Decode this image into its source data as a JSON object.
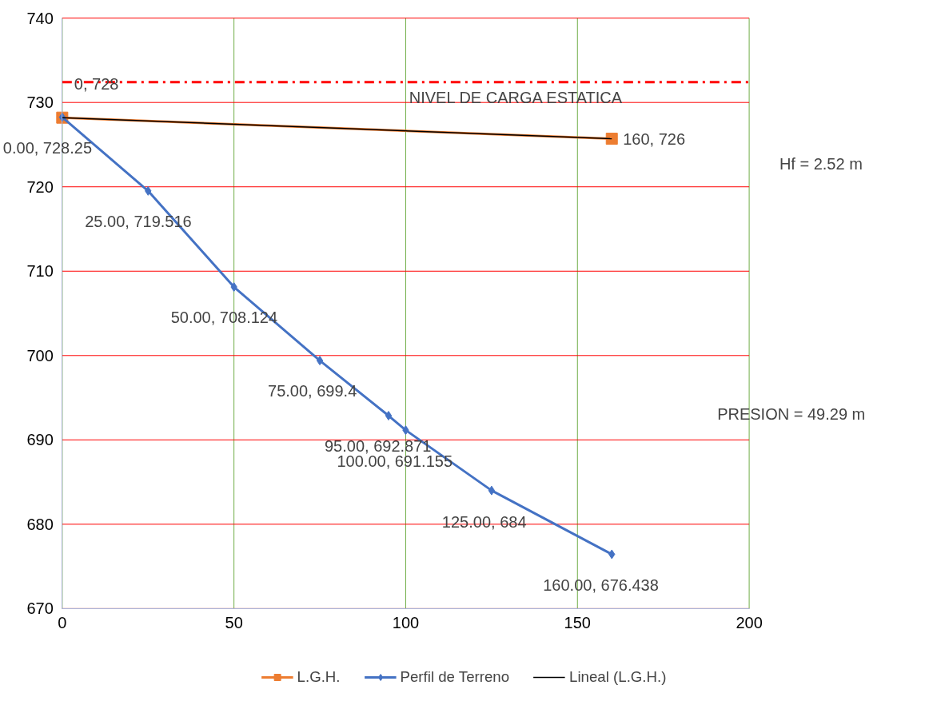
{
  "chart_data": {
    "type": "line",
    "series": [
      {
        "name": "L.G.H.",
        "color": "#ed7d31",
        "marker": "square",
        "x": [
          0,
          160
        ],
        "values": [
          728.2,
          725.7
        ],
        "value_labels": [
          "0, 728",
          "160, 726"
        ]
      },
      {
        "name": "Perfil de Terreno",
        "color": "#4472c4",
        "marker": "diamond",
        "x": [
          0,
          25,
          50,
          75,
          95,
          100,
          125,
          160
        ],
        "values": [
          728.25,
          719.516,
          708.124,
          699.4,
          692.871,
          691.155,
          684,
          676.438
        ],
        "value_labels": [
          "0.00, 728.25",
          "25.00, 719.516",
          "50.00, 708.124",
          "75.00, 699.4",
          "95.00, 692.871",
          "100.00, 691.155",
          "125.00, 684",
          "160.00, 676.438"
        ]
      },
      {
        "name": "Lineal (L.G.H.)",
        "color": "#000000",
        "marker": "none",
        "x": [
          0,
          160
        ],
        "values": [
          728.2,
          725.7
        ]
      }
    ],
    "xlim": [
      0,
      200
    ],
    "xticks": [
      0,
      50,
      100,
      150,
      200
    ],
    "ylim": [
      670,
      740
    ],
    "yticks": [
      670,
      680,
      690,
      700,
      710,
      720,
      730,
      740
    ],
    "ref_lines": [
      {
        "axis": "y",
        "value": 732.4,
        "label": "NIVEL DE CARGA ESTATICA",
        "color": "#ff0000",
        "line_style": "dashdot"
      }
    ],
    "annotations": [
      "Hf =   2.52 m",
      "PRESION =   49.29 m"
    ],
    "grid": true,
    "legend": "bottom"
  }
}
